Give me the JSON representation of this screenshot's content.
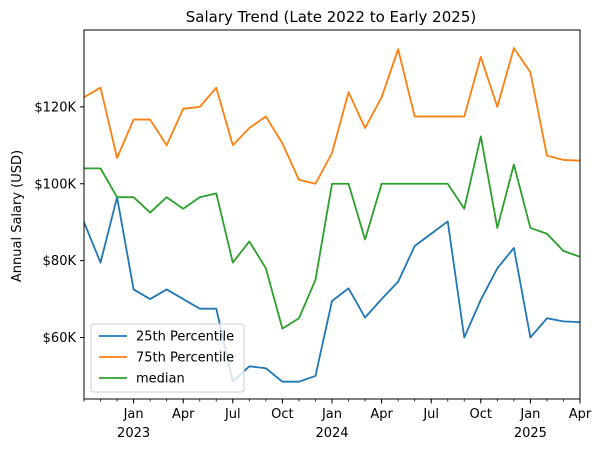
{
  "chart_data": {
    "type": "line",
    "title": "Salary Trend (Late 2022 to Early 2025)",
    "xlabel": "",
    "ylabel": "Annual Salary (USD)",
    "x": [
      "2022-10",
      "2022-11",
      "2022-12",
      "2023-01",
      "2023-02",
      "2023-03",
      "2023-04",
      "2023-05",
      "2023-06",
      "2023-07",
      "2023-08",
      "2023-09",
      "2023-10",
      "2023-11",
      "2023-12",
      "2024-01",
      "2024-02",
      "2024-03",
      "2024-04",
      "2024-05",
      "2024-06",
      "2024-07",
      "2024-08",
      "2024-09",
      "2024-10",
      "2024-11",
      "2024-12",
      "2025-01",
      "2025-02",
      "2025-03",
      "2025-04"
    ],
    "xlim": [
      "2022-10",
      "2025-04"
    ],
    "ylim": [
      44000,
      140000
    ],
    "yticks": [
      60000,
      80000,
      100000,
      120000
    ],
    "ytick_labels": [
      "$60K",
      "$80K",
      "$100K",
      "$120K"
    ],
    "xticks": [
      {
        "date": "2023-01",
        "label": "Jan",
        "year": "2023"
      },
      {
        "date": "2023-04",
        "label": "Apr",
        "year": ""
      },
      {
        "date": "2023-07",
        "label": "Jul",
        "year": ""
      },
      {
        "date": "2023-10",
        "label": "Oct",
        "year": ""
      },
      {
        "date": "2024-01",
        "label": "Jan",
        "year": "2024"
      },
      {
        "date": "2024-04",
        "label": "Apr",
        "year": ""
      },
      {
        "date": "2024-07",
        "label": "Jul",
        "year": ""
      },
      {
        "date": "2024-10",
        "label": "Oct",
        "year": ""
      },
      {
        "date": "2025-01",
        "label": "Jan",
        "year": "2025"
      },
      {
        "date": "2025-04",
        "label": "Apr",
        "year": ""
      }
    ],
    "grid": false,
    "legend": "lower-left",
    "series": [
      {
        "name": "25th Percentile",
        "color": "#1f77b4",
        "values": [
          90000,
          79500,
          96500,
          72500,
          70000,
          72500,
          70000,
          67500,
          67500,
          48500,
          52500,
          52000,
          48500,
          48500,
          50000,
          69500,
          72800,
          65200,
          70000,
          74500,
          83800,
          87000,
          90200,
          60000,
          69800,
          78000,
          83300,
          60000,
          65000,
          64200,
          64000
        ]
      },
      {
        "name": "75th Percentile",
        "color": "#ff7f0e",
        "values": [
          122500,
          125000,
          106700,
          116700,
          116700,
          110000,
          119500,
          120000,
          125000,
          110000,
          114500,
          117500,
          110500,
          101000,
          100000,
          108000,
          123800,
          114500,
          122500,
          135000,
          117500,
          117500,
          117500,
          117500,
          133000,
          120000,
          135300,
          129000,
          107300,
          106200,
          106000
        ]
      },
      {
        "name": "median",
        "color": "#2ca02c",
        "values": [
          104000,
          104000,
          96500,
          96500,
          92500,
          96500,
          93500,
          96500,
          97500,
          79500,
          85000,
          78000,
          62300,
          65000,
          75000,
          100000,
          100000,
          85500,
          100000,
          100000,
          100000,
          100000,
          100000,
          93500,
          112300,
          88500,
          105000,
          88500,
          87000,
          82500,
          81000
        ]
      }
    ]
  }
}
